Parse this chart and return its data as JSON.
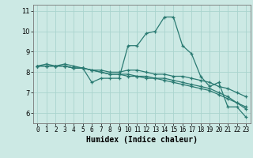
{
  "xlabel": "Humidex (Indice chaleur)",
  "ylabel": "",
  "background_color": "#cce9e4",
  "grid_color": "#aad4ce",
  "line_color": "#2a7a72",
  "xlim": [
    -0.5,
    23.5
  ],
  "ylim": [
    5.5,
    11.3
  ],
  "yticks": [
    6,
    7,
    8,
    9,
    10,
    11
  ],
  "xticks": [
    0,
    1,
    2,
    3,
    4,
    5,
    6,
    7,
    8,
    9,
    10,
    11,
    12,
    13,
    14,
    15,
    16,
    17,
    18,
    19,
    20,
    21,
    22,
    23
  ],
  "series": [
    [
      8.3,
      8.4,
      8.3,
      8.4,
      8.3,
      8.2,
      7.5,
      7.7,
      7.7,
      7.7,
      9.3,
      9.3,
      9.9,
      10.0,
      10.7,
      10.7,
      9.3,
      8.9,
      7.8,
      7.3,
      7.5,
      6.3,
      6.3,
      5.8
    ],
    [
      8.3,
      8.3,
      8.3,
      8.3,
      8.2,
      8.2,
      8.1,
      8.1,
      8.0,
      8.0,
      8.1,
      8.1,
      8.0,
      7.9,
      7.9,
      7.8,
      7.8,
      7.7,
      7.6,
      7.5,
      7.3,
      7.2,
      7.0,
      6.8
    ],
    [
      8.3,
      8.3,
      8.3,
      8.3,
      8.2,
      8.2,
      8.1,
      8.0,
      7.9,
      7.9,
      7.9,
      7.8,
      7.8,
      7.7,
      7.7,
      7.6,
      7.5,
      7.4,
      7.3,
      7.2,
      7.0,
      6.8,
      6.5,
      6.3
    ],
    [
      8.3,
      8.3,
      8.3,
      8.3,
      8.2,
      8.2,
      8.1,
      8.0,
      7.9,
      7.9,
      7.8,
      7.8,
      7.7,
      7.7,
      7.6,
      7.5,
      7.4,
      7.3,
      7.2,
      7.1,
      6.9,
      6.7,
      6.5,
      6.2
    ]
  ]
}
